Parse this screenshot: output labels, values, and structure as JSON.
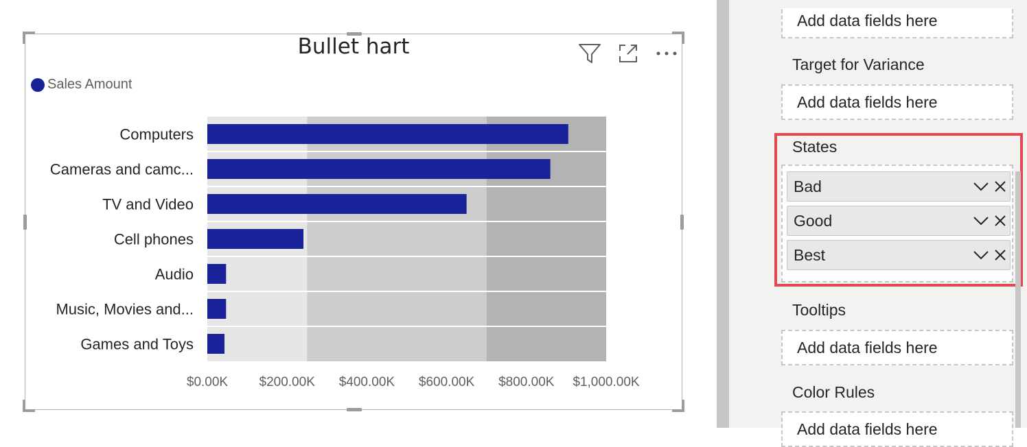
{
  "visual": {
    "title": "Bullet hart",
    "legend_label": "Sales Amount",
    "icons": [
      "filter-icon",
      "focus-mode-icon",
      "more-options-icon"
    ]
  },
  "chart_data": {
    "type": "bar",
    "orientation": "horizontal",
    "categories": [
      "Computers",
      "Cameras and camc...",
      "TV and Video",
      "Cell phones",
      "Audio",
      "Music, Movies and...",
      "Games and Toys"
    ],
    "series": [
      {
        "name": "Sales Amount",
        "values": [
          905000,
          860000,
          650000,
          241000,
          47000,
          47000,
          43000
        ],
        "color": "#1a2299"
      }
    ],
    "states": [
      {
        "name": "Bad",
        "from": 0,
        "to": 250000,
        "color": "#e6e6e6"
      },
      {
        "name": "Good",
        "from": 250000,
        "to": 700000,
        "color": "#cccccc"
      },
      {
        "name": "Best",
        "from": 700000,
        "to": 1000000,
        "color": "#b3b3b3"
      }
    ],
    "xticks": [
      "$0.00K",
      "$200.00K",
      "$400.00K",
      "$600.00K",
      "$800.00K",
      "$1,000.00K"
    ],
    "xtick_values": [
      0,
      200000,
      400000,
      600000,
      800000,
      1000000
    ],
    "xlim": [
      0,
      1000000
    ],
    "legend_position": "top-left"
  },
  "pane": {
    "sections": [
      {
        "title": "",
        "placeholder": "Add data fields here"
      },
      {
        "title": "Target for Variance",
        "placeholder": "Add data fields here"
      },
      {
        "title": "Tooltips",
        "placeholder": "Add data fields here"
      },
      {
        "title": "Color Rules",
        "placeholder": "Add data fields here"
      }
    ],
    "states": {
      "title": "States",
      "items": [
        "Bad",
        "Good",
        "Best"
      ]
    },
    "highlight_color": "#e34850"
  }
}
